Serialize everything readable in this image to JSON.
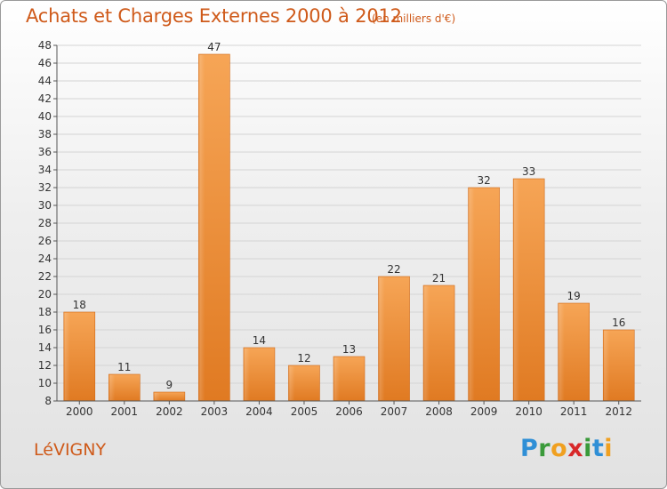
{
  "title": "Achats et Charges Externes 2000 à 2012",
  "subtitle": "(en milliers d'€)",
  "commune": "LéVIGNY",
  "brand": {
    "letters": [
      "P",
      "r",
      "o",
      "x",
      "i",
      "t",
      "i"
    ],
    "colors": [
      "#2f8fd6",
      "#3a9a3a",
      "#f0a020",
      "#d8282a",
      "#3a9a3a",
      "#2f8fd6",
      "#f0a020"
    ]
  },
  "colors": {
    "accent": "#cf5a1a",
    "bar_light": "#f6a556",
    "bar_dark": "#e07a22"
  },
  "chart_data": {
    "type": "bar",
    "title": "Achats et Charges Externes 2000 à 2012",
    "subtitle": "(en milliers d'€)",
    "categories": [
      "2000",
      "2001",
      "2002",
      "2003",
      "2004",
      "2005",
      "2006",
      "2007",
      "2008",
      "2009",
      "2010",
      "2011",
      "2012"
    ],
    "values": [
      18,
      11,
      9,
      47,
      14,
      12,
      13,
      22,
      21,
      32,
      33,
      19,
      16
    ],
    "ylim": [
      8,
      48
    ],
    "yticks": [
      8,
      10,
      12,
      14,
      16,
      18,
      20,
      22,
      24,
      26,
      28,
      30,
      32,
      34,
      36,
      38,
      40,
      42,
      44,
      46,
      48
    ],
    "grid": true,
    "data_labels": true
  }
}
